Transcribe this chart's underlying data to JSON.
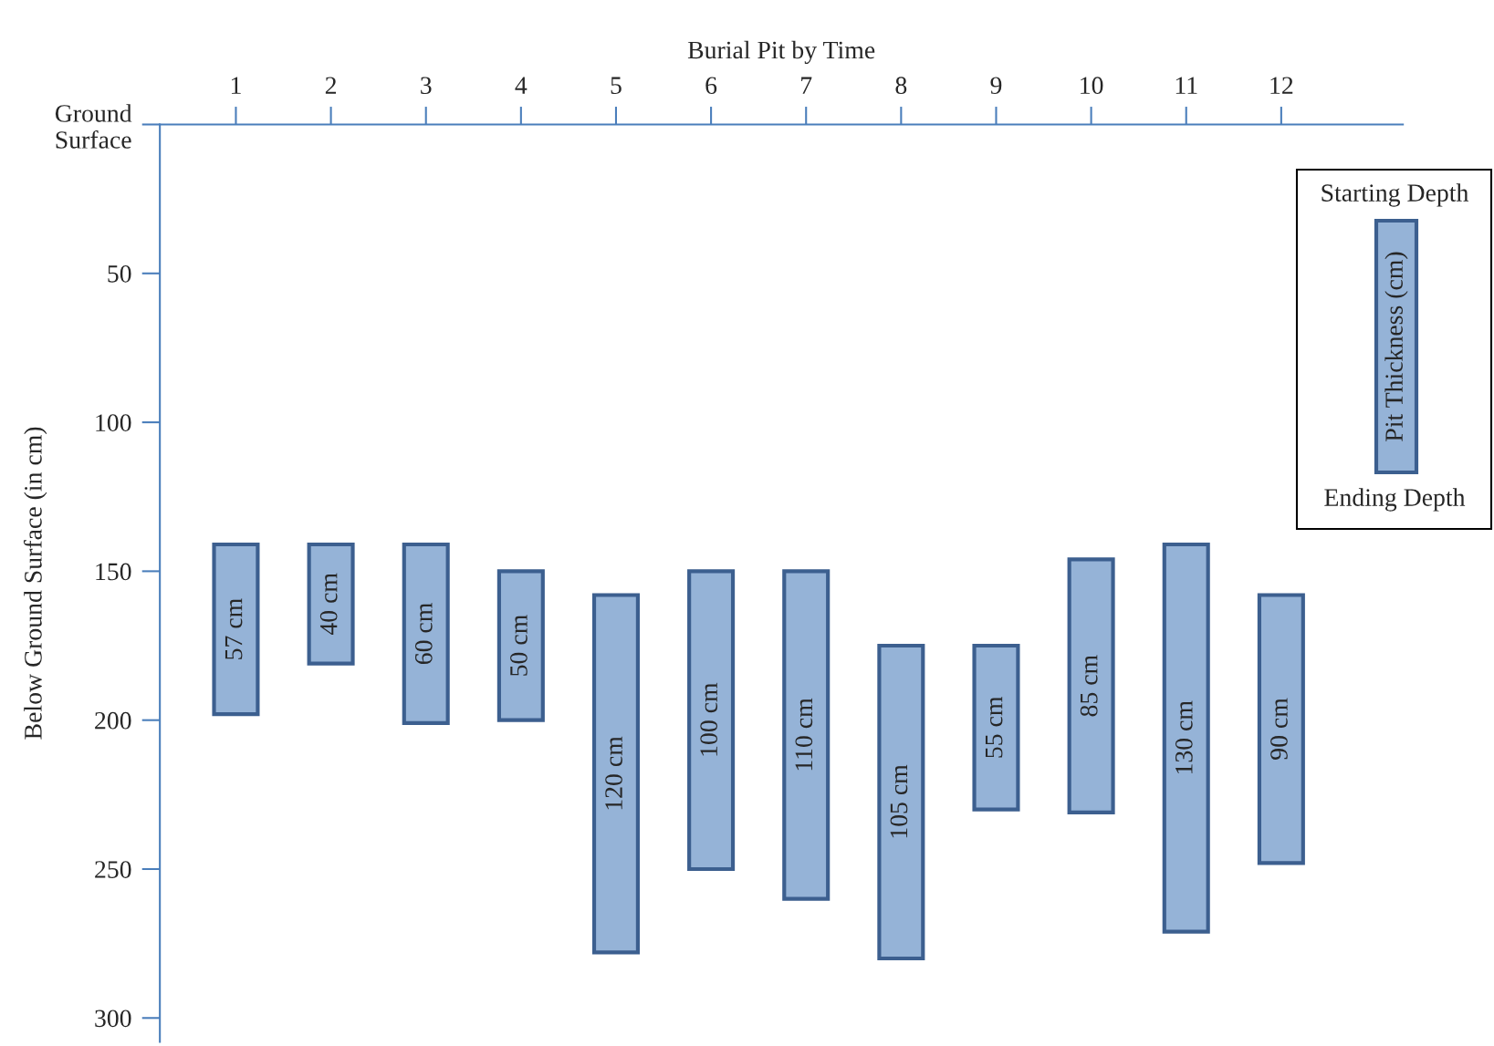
{
  "chart_data": {
    "type": "bar",
    "xlabel": "Burial Pit by Time",
    "ylabel": "Below Ground Surface (in cm)",
    "categories": [
      "1",
      "2",
      "3",
      "4",
      "5",
      "6",
      "7",
      "8",
      "9",
      "10",
      "11",
      "12"
    ],
    "base": [
      141,
      141,
      141,
      150,
      158,
      150,
      150,
      175,
      175,
      146,
      141,
      158
    ],
    "values": [
      57,
      40,
      60,
      50,
      120,
      100,
      110,
      105,
      55,
      85,
      130,
      90
    ],
    "value_labels": [
      "57 cm",
      "40 cm",
      "60 cm",
      "50 cm",
      "120 cm",
      "100 cm",
      "110 cm",
      "105 cm",
      "55 cm",
      "85 cm",
      "130 cm",
      "90 cm"
    ],
    "color": "#95b3d7",
    "ylim": [
      308,
      0
    ],
    "yticks": [
      {
        "value": 0,
        "label": "Ground\nSurface"
      },
      50,
      100,
      150,
      200,
      250,
      300
    ],
    "annotations": [
      "Starting Depth",
      "Pit Thickness (cm)",
      "Ending Depth"
    ],
    "grid": false,
    "legend": false
  }
}
